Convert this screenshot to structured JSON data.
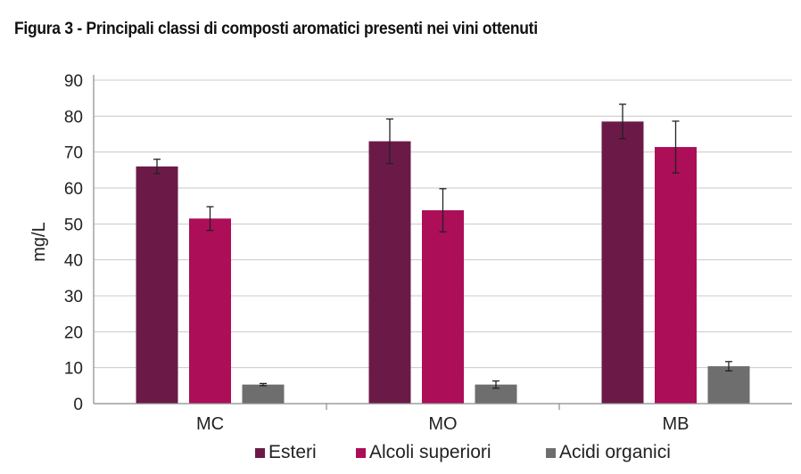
{
  "figure": {
    "title": "Figura 3 - Principali classi di composti aromatici presenti nei vini ottenuti"
  },
  "chart_data": {
    "type": "bar",
    "title": "Figura 3 - Principali classi di composti aromatici presenti nei vini ottenuti",
    "xlabel": "",
    "ylabel": "mg/L",
    "ylim": [
      0,
      90
    ],
    "yticks": [
      0,
      10,
      20,
      30,
      40,
      50,
      60,
      70,
      80,
      90
    ],
    "grid": true,
    "legend_position": "bottom",
    "categories": [
      "MC",
      "MO",
      "MB"
    ],
    "series": [
      {
        "name": "Esteri",
        "color": "#6b1a48",
        "values": [
          66,
          73,
          78.5
        ],
        "errors": [
          2,
          6.2,
          4.8
        ]
      },
      {
        "name": "Alcoli superiori",
        "color": "#ac0e58",
        "values": [
          51.5,
          53.8,
          71.4
        ],
        "errors": [
          3.3,
          6,
          7.2
        ]
      },
      {
        "name": "Acidi organici",
        "color": "#6e6e6e",
        "values": [
          5.3,
          5.3,
          10.4
        ],
        "errors": [
          0.3,
          1,
          1.3
        ]
      }
    ]
  }
}
